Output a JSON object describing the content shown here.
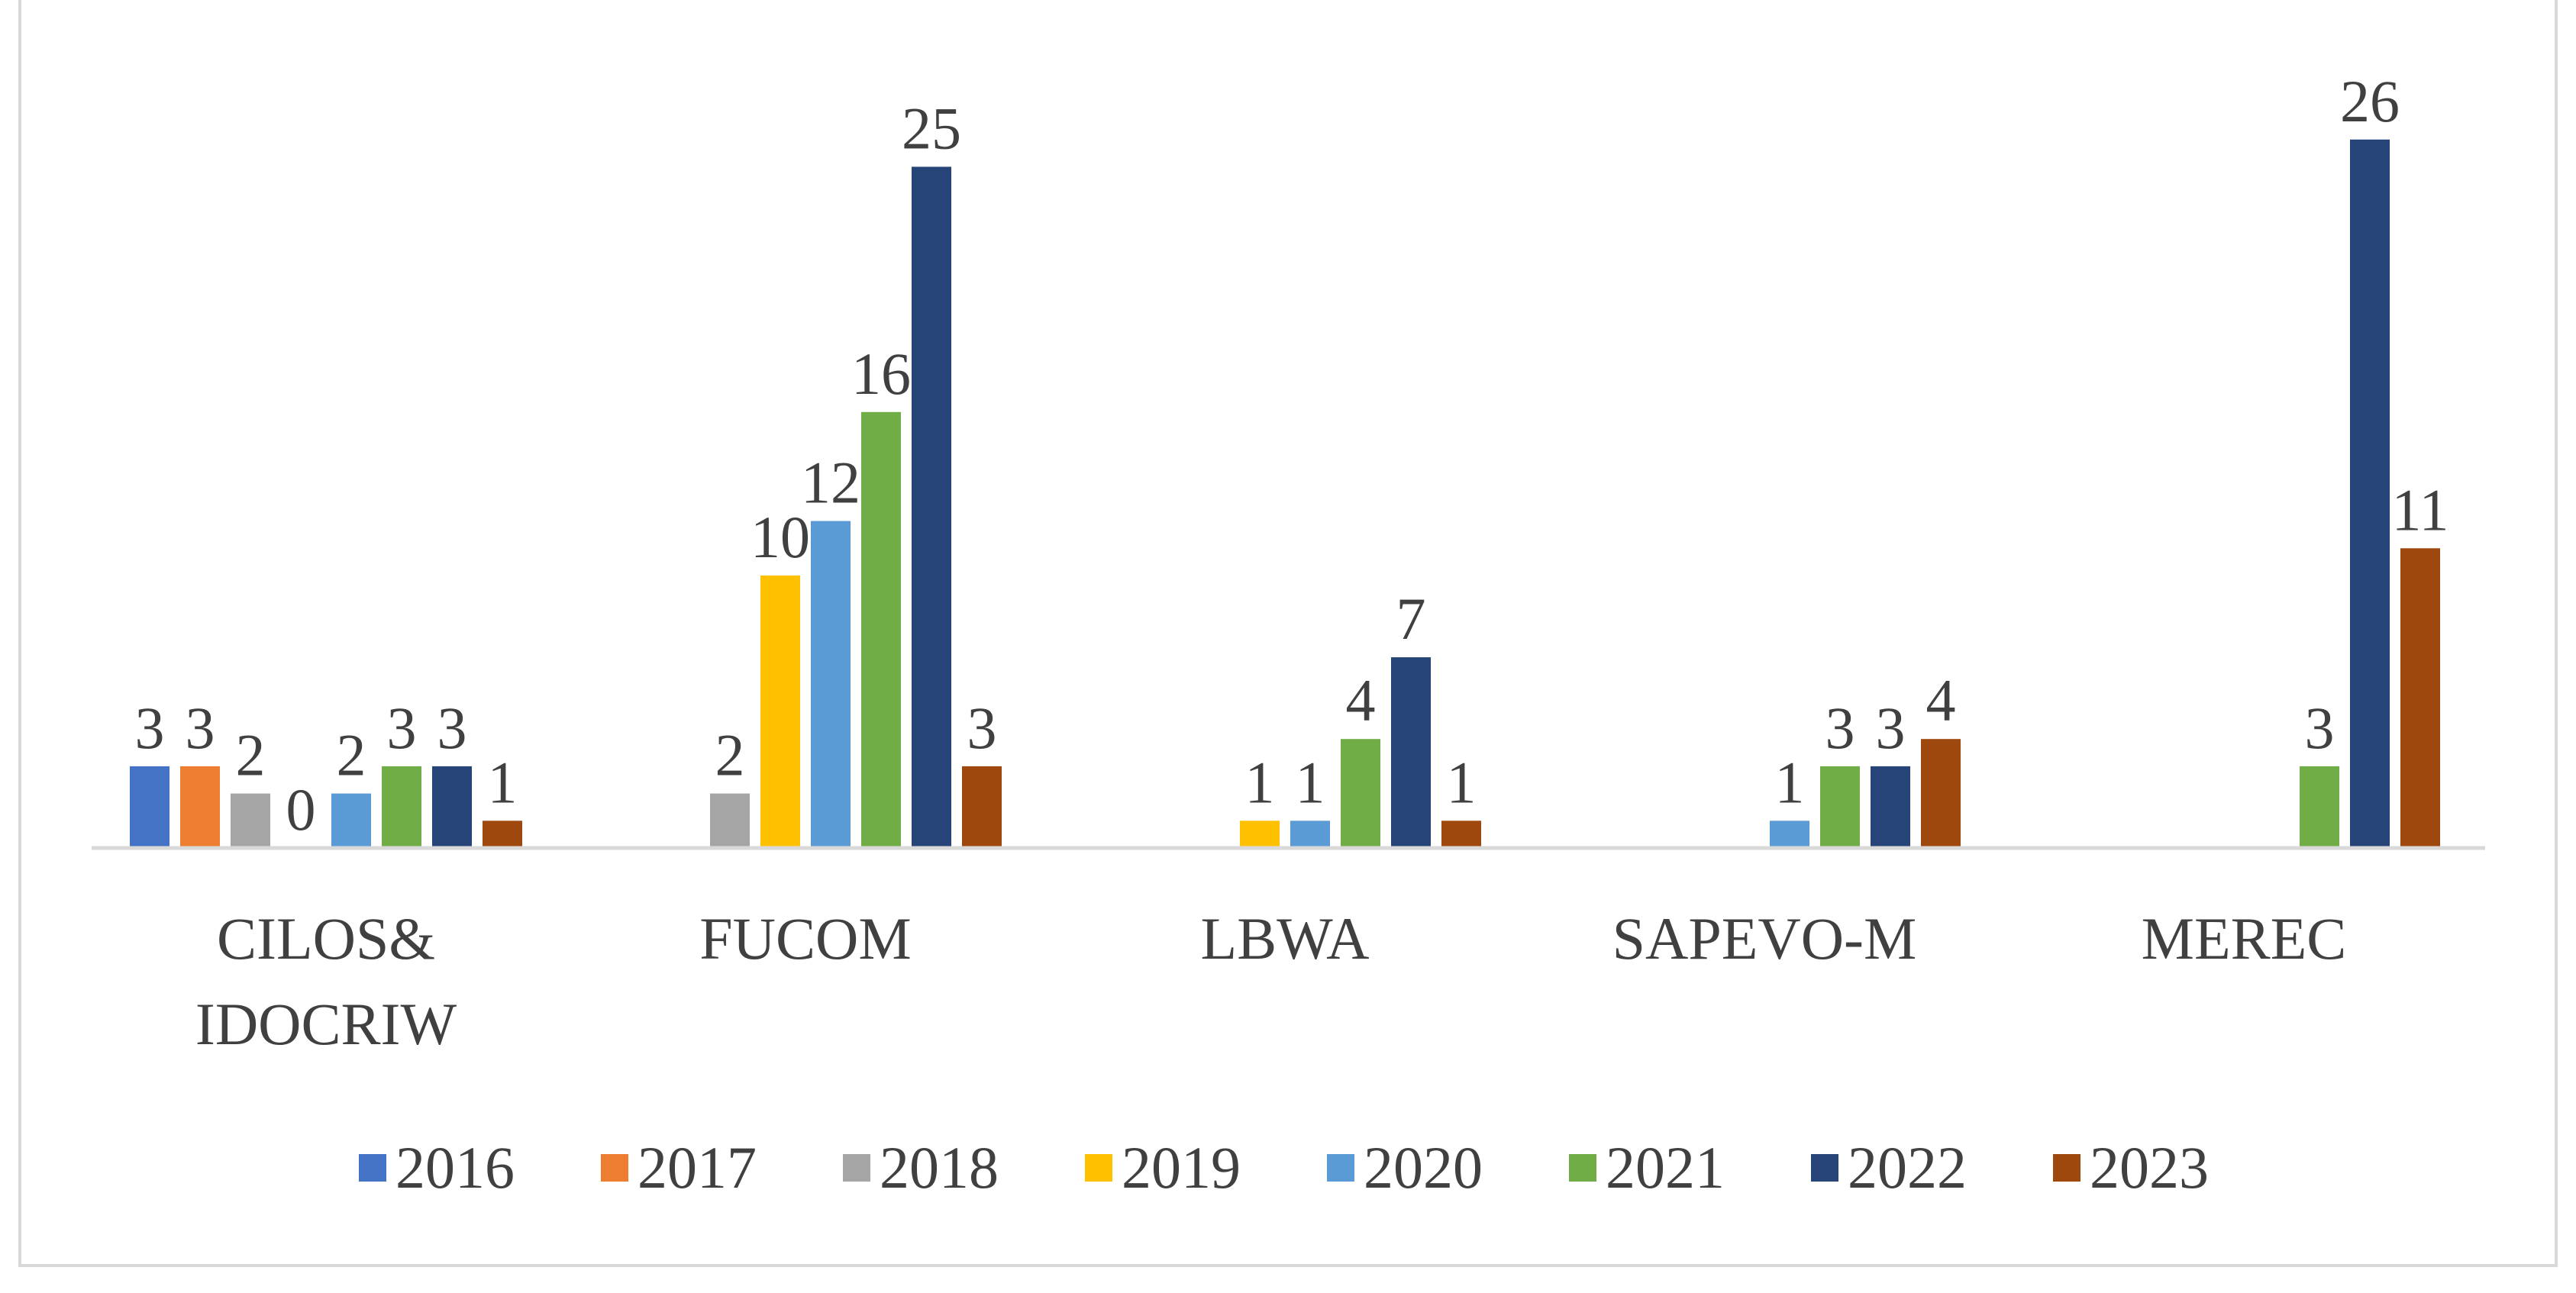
{
  "chart_data": {
    "type": "bar",
    "title": "",
    "xlabel": "",
    "ylabel": "",
    "ylim": [
      0,
      26
    ],
    "grid": false,
    "legend_position": "bottom",
    "categories": [
      "CILOS& IDOCRIW",
      "FUCOM",
      "LBWA",
      "SAPEVO-M",
      "MEREC"
    ],
    "category_lines": [
      [
        "CILOS&",
        "IDOCRIW"
      ],
      [
        "FUCOM"
      ],
      [
        "LBWA"
      ],
      [
        "SAPEVO-M"
      ],
      [
        "MEREC"
      ]
    ],
    "series": [
      {
        "name": "2016",
        "color": "#4472c4",
        "values": [
          3,
          null,
          null,
          null,
          null
        ]
      },
      {
        "name": "2017",
        "color": "#ed7d31",
        "values": [
          3,
          null,
          null,
          null,
          null
        ]
      },
      {
        "name": "2018",
        "color": "#a5a5a5",
        "values": [
          2,
          2,
          null,
          null,
          null
        ]
      },
      {
        "name": "2019",
        "color": "#ffc000",
        "values": [
          0,
          10,
          1,
          null,
          null
        ]
      },
      {
        "name": "2020",
        "color": "#5b9bd5",
        "values": [
          2,
          12,
          1,
          1,
          null
        ]
      },
      {
        "name": "2021",
        "color": "#70ad47",
        "values": [
          3,
          16,
          4,
          3,
          3
        ]
      },
      {
        "name": "2022",
        "color": "#264478",
        "values": [
          3,
          25,
          7,
          3,
          26
        ]
      },
      {
        "name": "2023",
        "color": "#9e480e",
        "values": [
          1,
          3,
          1,
          4,
          11
        ]
      }
    ]
  }
}
